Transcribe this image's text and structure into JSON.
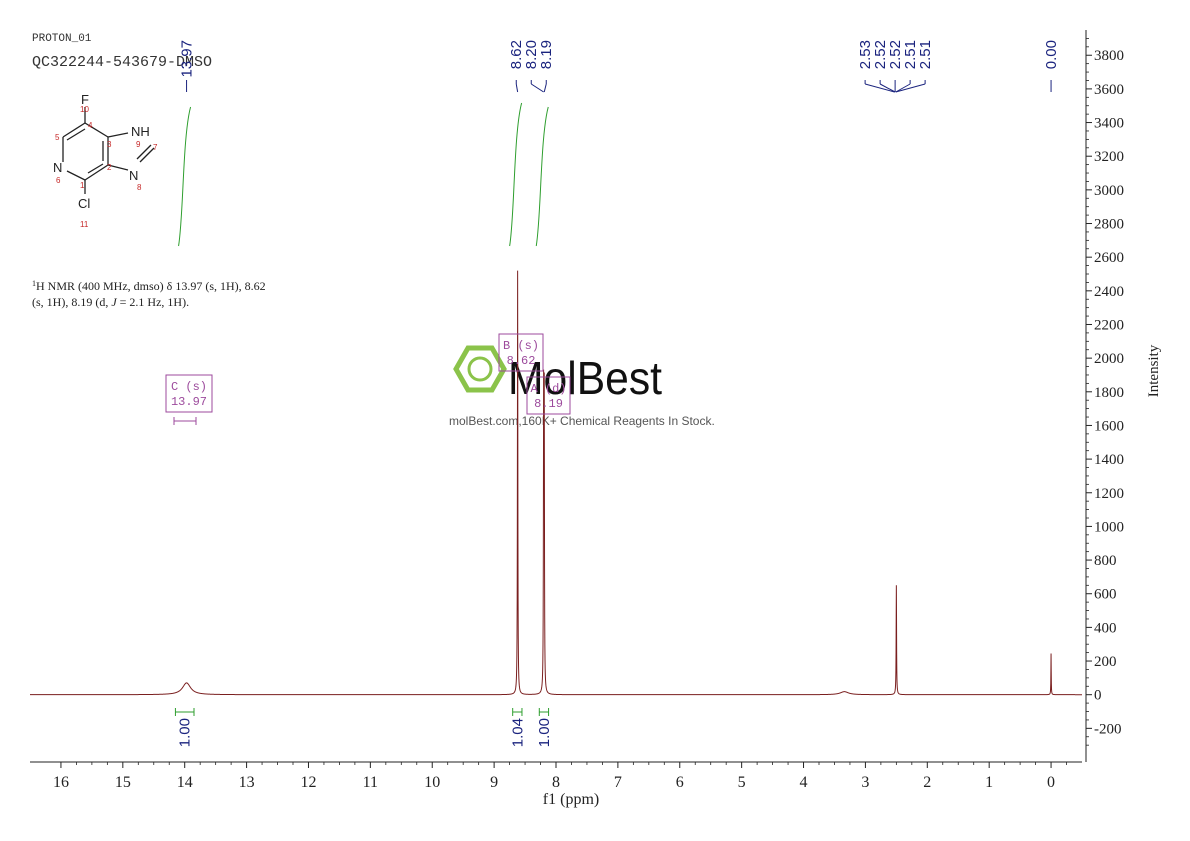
{
  "header": {
    "experiment": "PROTON_01",
    "sample": "QC322244-543679-DMSO"
  },
  "structure": {
    "atoms": {
      "f": "F",
      "f_num": "10",
      "nh": "NH",
      "nh_num": "9",
      "c7_num": "7",
      "n8": "N",
      "n8_num": "8",
      "n6": "N",
      "n6_num": "6",
      "cl": "Cl",
      "cl_num": "11",
      "c5_num": "5",
      "c4_num": "4",
      "c3_num": "3",
      "c2_num": "2",
      "c1_num": "1"
    }
  },
  "nmr_text": {
    "line1_sup": "1",
    "line1": "H NMR (400 MHz, dmso) δ 13.97 (s, 1H), 8.62",
    "line2a": "(s, 1H), 8.19 (d, ",
    "line2_j": "J",
    "line2b": " = 2.1 Hz, 1H)."
  },
  "watermark": {
    "brand": "MolBest",
    "tagline": "molBest.com,160K+ Chemical Reagents In Stock."
  },
  "multiplets": [
    {
      "label": "C (s)",
      "value": "13.97",
      "ppm": 13.97
    },
    {
      "label": "B (s)",
      "value": "8.62",
      "ppm": 8.62
    },
    {
      "label": "A (d)",
      "value": "8.19",
      "ppm": 8.19
    }
  ],
  "peak_labels": [
    {
      "text": "13.97",
      "ppm": 13.97
    },
    {
      "text": "8.62",
      "ppm": 8.62
    },
    {
      "text": "8.20",
      "ppm": 8.2
    },
    {
      "text": "8.19",
      "ppm": 8.19
    },
    {
      "text": "2.53",
      "ppm": 2.53
    },
    {
      "text": "2.52",
      "ppm": 2.52
    },
    {
      "text": "2.52",
      "ppm": 2.52
    },
    {
      "text": "2.51",
      "ppm": 2.51
    },
    {
      "text": "2.51",
      "ppm": 2.51
    },
    {
      "text": "0.00",
      "ppm": 0.0
    }
  ],
  "integrals": [
    {
      "text": "1.00",
      "from_ppm": 14.15,
      "to_ppm": 13.85
    },
    {
      "text": "1.04",
      "from_ppm": 8.7,
      "to_ppm": 8.55
    },
    {
      "text": "1.00",
      "from_ppm": 8.27,
      "to_ppm": 8.12
    }
  ],
  "chart_data": {
    "type": "line",
    "xlabel": "f1 (ppm)",
    "ylabel": "Intensity",
    "xlim": [
      16.5,
      -0.5
    ],
    "ylim": [
      -400,
      3950
    ],
    "x_ticks": [
      "16",
      "15",
      "14",
      "13",
      "12",
      "11",
      "10",
      "9",
      "8",
      "7",
      "6",
      "5",
      "4",
      "3",
      "2",
      "1",
      "0"
    ],
    "y_ticks": [
      "3800",
      "3600",
      "3400",
      "3200",
      "3000",
      "2800",
      "2600",
      "2400",
      "2200",
      "2000",
      "1800",
      "1600",
      "1400",
      "1200",
      "1000",
      "800",
      "600",
      "400",
      "200",
      "0",
      "-200"
    ],
    "series": [
      {
        "peaks": [
          {
            "ppm": 13.97,
            "height": 70,
            "width": 0.08
          },
          {
            "ppm": 8.62,
            "height": 2520,
            "width": 0.004
          },
          {
            "ppm": 8.2,
            "height": 1700,
            "width": 0.004
          },
          {
            "ppm": 8.19,
            "height": 1680,
            "width": 0.004
          },
          {
            "ppm": 3.34,
            "height": 18,
            "width": 0.08
          },
          {
            "ppm": 2.5,
            "height": 650,
            "width": 0.004
          },
          {
            "ppm": 0.0,
            "height": 245,
            "width": 0.003
          }
        ]
      }
    ],
    "colors": {
      "spectrum": "#7a1f1f",
      "integral_curve": "#2e9e2e",
      "peak_label": "#1a237e",
      "multiplet": "#9c4a9c",
      "axis": "#222222"
    }
  }
}
